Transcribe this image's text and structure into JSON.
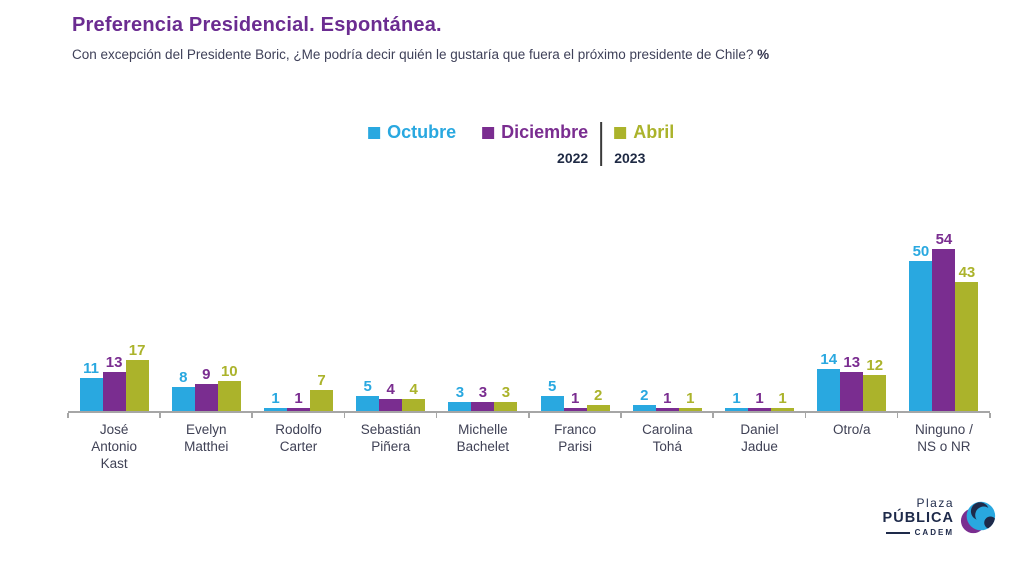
{
  "header": {
    "title": "Preferencia Presidencial. Espontánea.",
    "subtitle": "Con excepción del Presidente Boric, ¿Me podría decir quién le gustaría que fuera el próximo presidente de Chile?",
    "subtitle_suffix": "%"
  },
  "legend": {
    "year_left": "2022",
    "year_right": "2023"
  },
  "chart_data": {
    "type": "bar",
    "title": "Preferencia Presidencial. Espontánea.",
    "unit": "%",
    "ylim": [
      0,
      60
    ],
    "grid": false,
    "legend_position": "top-center",
    "categories": [
      "José Antonio Kast",
      "Evelyn Matthei",
      "Rodolfo Carter",
      "Sebastián Piñera",
      "Michelle Bachelet",
      "Franco Parisi",
      "Carolina Tohá",
      "Daniel Jadue",
      "Otro/a",
      "Ninguno / NS o NR"
    ],
    "category_lines": [
      [
        "José",
        "Antonio",
        "Kast"
      ],
      [
        "Evelyn",
        "Matthei"
      ],
      [
        "Rodolfo",
        "Carter"
      ],
      [
        "Sebastián",
        "Piñera"
      ],
      [
        "Michelle",
        "Bachelet"
      ],
      [
        "Franco",
        "Parisi"
      ],
      [
        "Carolina",
        "Tohá"
      ],
      [
        "Daniel",
        "Jadue"
      ],
      [
        "Otro/a"
      ],
      [
        "Ninguno /",
        "NS o NR"
      ]
    ],
    "series": [
      {
        "name": "Octubre 2022",
        "label": "Octubre",
        "year": "2022",
        "color": "#29A8E0",
        "values": [
          11,
          8,
          1,
          5,
          3,
          5,
          2,
          1,
          14,
          50
        ]
      },
      {
        "name": "Diciembre 2022",
        "label": "Diciembre",
        "year": "2022",
        "color": "#7A2D90",
        "values": [
          13,
          9,
          1,
          4,
          3,
          1,
          1,
          1,
          13,
          54
        ]
      },
      {
        "name": "Abril 2023",
        "label": "Abril",
        "year": "2023",
        "color": "#ABB32B",
        "values": [
          17,
          10,
          7,
          4,
          3,
          2,
          1,
          1,
          12,
          43
        ]
      }
    ]
  },
  "logo": {
    "line1": "Plaza",
    "line2": "PÚBLICA",
    "line3": "CADEM"
  }
}
